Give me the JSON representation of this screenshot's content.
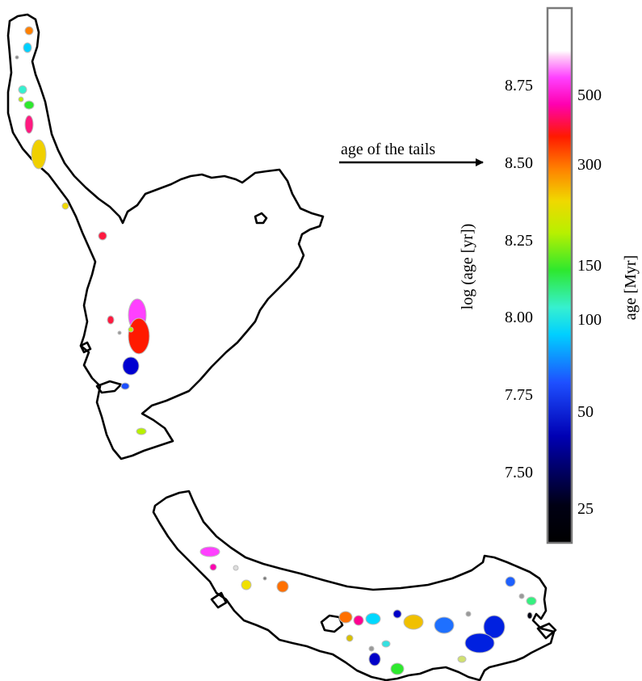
{
  "arrow": {
    "label": "age of the tails"
  },
  "colorbar": {
    "left_axis": {
      "label": "log (age [yr])",
      "ticks": [
        "8.75",
        "8.50",
        "8.25",
        "8.00",
        "7.75",
        "7.50"
      ]
    },
    "right_axis": {
      "label": "age [Myr]",
      "ticks": [
        "500",
        "300",
        "150",
        "100",
        "50",
        "25"
      ]
    },
    "colormap": [
      "#000000",
      "#0000b4",
      "#1e50ff",
      "#00d0ff",
      "#36f0d0",
      "#2ee82e",
      "#b8f000",
      "#f0d800",
      "#ff8000",
      "#ff1a00",
      "#ff00b0",
      "#ff40ff",
      "#ffd0f8",
      "#ffffff"
    ]
  }
}
